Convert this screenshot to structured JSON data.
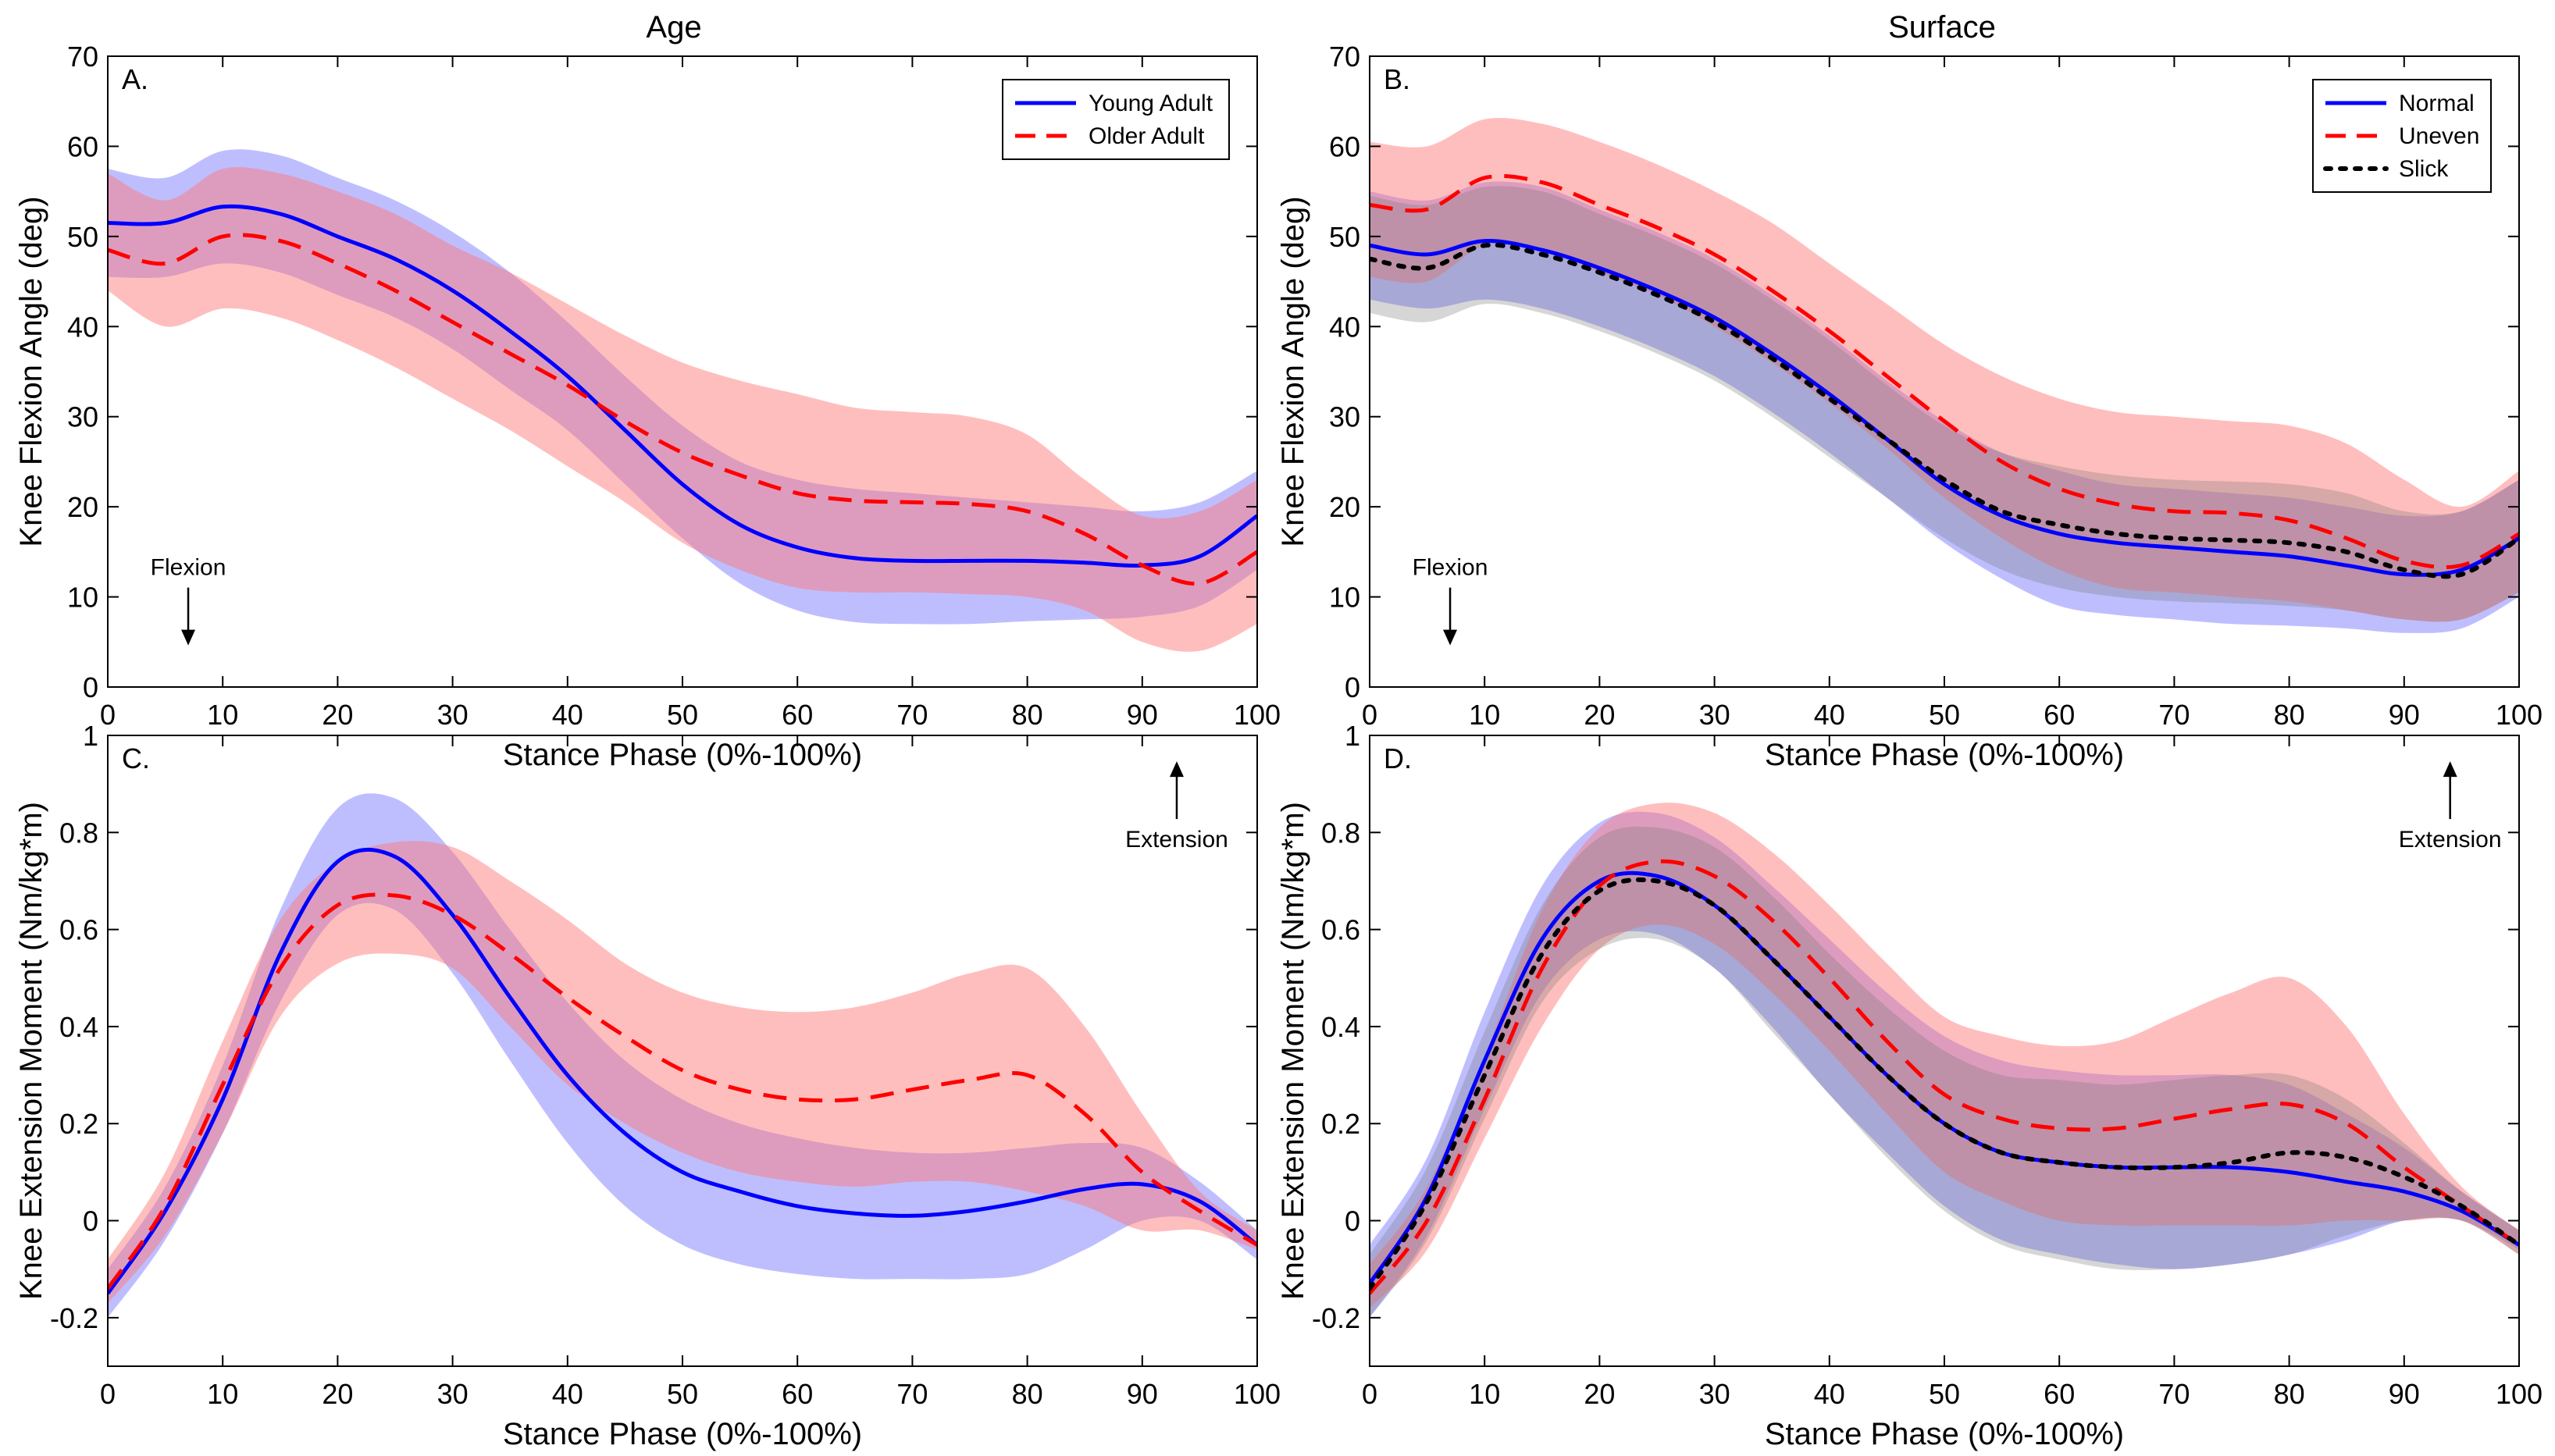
{
  "figure": {
    "column_titles": [
      "Age",
      "Surface"
    ],
    "x_axis_label": "Stance Phase (0%-100%)",
    "y_axis_label_top": "Knee Flexion Angle (deg)",
    "y_axis_label_bottom": "Knee Extension Moment (Nm/kg*m)",
    "annotation_flexion": "Flexion",
    "annotation_extension": "Extension"
  },
  "chart_data": [
    {
      "id": "A",
      "type": "line",
      "panel_label": "A.",
      "title": "Age",
      "xlabel": "Stance Phase (0%-100%)",
      "ylabel": "Knee Flexion Angle (deg)",
      "xlim": [
        0,
        100
      ],
      "ylim": [
        0,
        70
      ],
      "xticks": [
        0,
        10,
        20,
        30,
        40,
        50,
        60,
        70,
        80,
        90,
        100
      ],
      "yticks": [
        0,
        10,
        20,
        30,
        40,
        50,
        60,
        70
      ],
      "legend_position": "top-right",
      "annotation": {
        "text": "Flexion",
        "x": 7,
        "y": 10,
        "arrow": "down"
      },
      "x": [
        0,
        5,
        10,
        15,
        20,
        25,
        30,
        35,
        40,
        45,
        50,
        55,
        60,
        65,
        70,
        75,
        80,
        85,
        90,
        95,
        100
      ],
      "series": [
        {
          "name": "Young Adult",
          "color": "#0000ff",
          "dash": "solid",
          "values": [
            51.5,
            51.5,
            53.3,
            52.5,
            50,
            47.5,
            44,
            39.5,
            34.5,
            28.5,
            22.5,
            18,
            15.5,
            14.3,
            14,
            14,
            14,
            13.8,
            13.5,
            14.5,
            19
          ],
          "upper": [
            57.5,
            56.5,
            59.5,
            59,
            56.5,
            54,
            50.5,
            46,
            40.5,
            34.5,
            29,
            25,
            23,
            22,
            21.5,
            21,
            20.5,
            20,
            19.5,
            20.5,
            24
          ],
          "lower": [
            45.5,
            45.5,
            47,
            46,
            43.5,
            41,
            37.5,
            33,
            28.5,
            22.5,
            16.5,
            11.5,
            8.5,
            7.2,
            7,
            7,
            7.3,
            7.5,
            7.8,
            9,
            13
          ]
        },
        {
          "name": "Older Adult",
          "color": "#ff0000",
          "dash": "dashed",
          "values": [
            48.5,
            47,
            50,
            49.5,
            47,
            44,
            40.5,
            37,
            33.5,
            29.5,
            26,
            23.5,
            21.5,
            20.7,
            20.5,
            20.3,
            19.5,
            17,
            13.5,
            11.5,
            15
          ],
          "upper": [
            57,
            54,
            57.5,
            57,
            55,
            52.5,
            49,
            46,
            42.5,
            39,
            36,
            34,
            32.5,
            31,
            30.5,
            30,
            28,
            23,
            19,
            19.5,
            23
          ],
          "lower": [
            44,
            40,
            42,
            41,
            38.5,
            35.5,
            32,
            28.5,
            24.5,
            20.5,
            16,
            13,
            11,
            10.5,
            10.5,
            10.3,
            10,
            8.5,
            5,
            4,
            7
          ]
        }
      ]
    },
    {
      "id": "B",
      "type": "line",
      "panel_label": "B.",
      "title": "Surface",
      "xlabel": "Stance Phase (0%-100%)",
      "ylabel": "Knee Flexion Angle (deg)",
      "xlim": [
        0,
        100
      ],
      "ylim": [
        0,
        70
      ],
      "xticks": [
        0,
        10,
        20,
        30,
        40,
        50,
        60,
        70,
        80,
        90,
        100
      ],
      "yticks": [
        0,
        10,
        20,
        30,
        40,
        50,
        60,
        70
      ],
      "legend_position": "top-right",
      "annotation": {
        "text": "Flexion",
        "x": 7,
        "y": 10,
        "arrow": "down"
      },
      "x": [
        0,
        5,
        10,
        15,
        20,
        25,
        30,
        35,
        40,
        45,
        50,
        55,
        60,
        65,
        70,
        75,
        80,
        85,
        90,
        95,
        100
      ],
      "series": [
        {
          "name": "Normal",
          "color": "#0000ff",
          "dash": "solid",
          "values": [
            49,
            48,
            49.5,
            48.5,
            46.5,
            44,
            41,
            37,
            32.5,
            27.5,
            22.5,
            19,
            17,
            16,
            15.5,
            15,
            14.5,
            13.5,
            12.5,
            13,
            16.5
          ],
          "upper": [
            55,
            54,
            56,
            55.5,
            53,
            50.5,
            47.5,
            43.5,
            39,
            34,
            29.5,
            26,
            24,
            22.5,
            22,
            21.5,
            21,
            20,
            19,
            19.5,
            23
          ],
          "lower": [
            43,
            42,
            43,
            42,
            40,
            37.5,
            34.5,
            30.5,
            26,
            21,
            16,
            12,
            9,
            8,
            7.5,
            7,
            6.8,
            6.5,
            6,
            6.5,
            10
          ]
        },
        {
          "name": "Uneven",
          "color": "#ff0000",
          "dash": "dashed",
          "values": [
            53.5,
            53,
            56.5,
            56,
            53.5,
            51,
            48,
            44,
            39.5,
            34.5,
            29.5,
            25,
            22,
            20.3,
            19.5,
            19.3,
            18.5,
            16.5,
            14,
            13.5,
            17
          ],
          "upper": [
            60.5,
            60,
            63,
            62.5,
            60.5,
            58,
            55,
            51.5,
            47,
            42.5,
            38,
            34.5,
            32,
            30.5,
            30,
            29.5,
            29,
            27,
            23,
            20,
            24
          ],
          "lower": [
            45.5,
            45,
            49,
            48.5,
            46,
            43.5,
            40,
            36,
            31.5,
            26.5,
            21,
            16.5,
            13,
            11,
            10.5,
            10,
            9.5,
            8.5,
            7.5,
            7.5,
            10.5
          ]
        },
        {
          "name": "Slick",
          "color": "#000000",
          "dash": "dotted",
          "values": [
            47.5,
            46.5,
            49,
            48,
            46,
            43.5,
            40.5,
            36.5,
            32,
            27.5,
            23,
            19.5,
            18,
            17,
            16.5,
            16.3,
            16,
            15,
            13,
            12.5,
            16.5
          ],
          "upper": [
            54.5,
            53.5,
            55.5,
            55,
            52.5,
            50,
            47,
            43,
            38.5,
            33.5,
            29,
            26,
            24.5,
            23.5,
            23,
            22.8,
            22.5,
            21.5,
            19.5,
            19.5,
            23
          ],
          "lower": [
            41.5,
            40.5,
            42.5,
            41.5,
            39.5,
            37,
            34,
            30,
            25.5,
            21,
            16.5,
            13,
            11,
            10,
            9.5,
            9.3,
            9,
            8.5,
            7.5,
            7.5,
            10.5
          ]
        }
      ]
    },
    {
      "id": "C",
      "type": "line",
      "panel_label": "C.",
      "title": "",
      "xlabel": "Stance Phase (0%-100%)",
      "ylabel": "Knee Extension Moment (Nm/kg*m)",
      "xlim": [
        0,
        100
      ],
      "ylim": [
        -0.3,
        1
      ],
      "xticks": [
        0,
        10,
        20,
        30,
        40,
        50,
        60,
        70,
        80,
        90,
        100
      ],
      "yticks": [
        -0.2,
        0,
        0.2,
        0.4,
        0.6,
        0.8,
        1
      ],
      "annotation": {
        "text": "Extension",
        "x": 93,
        "y": 0.95,
        "arrow": "up"
      },
      "x": [
        0,
        5,
        10,
        15,
        20,
        25,
        30,
        35,
        40,
        45,
        50,
        55,
        60,
        65,
        70,
        75,
        80,
        85,
        90,
        95,
        100
      ],
      "series": [
        {
          "name": "Young Adult",
          "color": "#0000ff",
          "dash": "solid",
          "values": [
            -0.15,
            0.02,
            0.25,
            0.55,
            0.74,
            0.75,
            0.63,
            0.46,
            0.3,
            0.18,
            0.1,
            0.06,
            0.03,
            0.015,
            0.01,
            0.02,
            0.04,
            0.065,
            0.075,
            0.04,
            -0.05
          ],
          "upper": [
            -0.1,
            0.07,
            0.32,
            0.64,
            0.85,
            0.87,
            0.76,
            0.6,
            0.45,
            0.33,
            0.25,
            0.2,
            0.17,
            0.15,
            0.14,
            0.14,
            0.15,
            0.16,
            0.15,
            0.08,
            -0.02
          ],
          "lower": [
            -0.2,
            -0.04,
            0.18,
            0.45,
            0.63,
            0.64,
            0.51,
            0.33,
            0.16,
            0.03,
            -0.05,
            -0.09,
            -0.11,
            -0.12,
            -0.12,
            -0.12,
            -0.11,
            -0.06,
            0,
            0,
            -0.08
          ]
        },
        {
          "name": "Older Adult",
          "color": "#ff0000",
          "dash": "dashed",
          "values": [
            -0.14,
            0.03,
            0.28,
            0.52,
            0.65,
            0.67,
            0.63,
            0.55,
            0.46,
            0.38,
            0.31,
            0.27,
            0.25,
            0.25,
            0.27,
            0.29,
            0.3,
            0.22,
            0.1,
            0.02,
            -0.05
          ],
          "upper": [
            -0.08,
            0.1,
            0.37,
            0.62,
            0.74,
            0.78,
            0.77,
            0.7,
            0.62,
            0.53,
            0.47,
            0.44,
            0.43,
            0.44,
            0.47,
            0.51,
            0.52,
            0.4,
            0.22,
            0.06,
            -0.02
          ],
          "lower": [
            -0.17,
            -0.03,
            0.18,
            0.42,
            0.53,
            0.55,
            0.52,
            0.4,
            0.28,
            0.2,
            0.14,
            0.1,
            0.08,
            0.07,
            0.08,
            0.08,
            0.06,
            0.03,
            -0.02,
            -0.02,
            -0.06
          ]
        }
      ]
    },
    {
      "id": "D",
      "type": "line",
      "panel_label": "D.",
      "title": "",
      "xlabel": "Stance Phase (0%-100%)",
      "ylabel": "Knee Extension Moment (Nm/kg*m)",
      "xlim": [
        0,
        100
      ],
      "ylim": [
        -0.3,
        1
      ],
      "xticks": [
        0,
        10,
        20,
        30,
        40,
        50,
        60,
        70,
        80,
        90,
        100
      ],
      "yticks": [
        -0.2,
        0,
        0.2,
        0.4,
        0.6,
        0.8,
        1
      ],
      "annotation": {
        "text": "Extension",
        "x": 94,
        "y": 0.95,
        "arrow": "up"
      },
      "x": [
        0,
        5,
        10,
        15,
        20,
        25,
        30,
        35,
        40,
        45,
        50,
        55,
        60,
        65,
        70,
        75,
        80,
        85,
        90,
        95,
        100
      ],
      "series": [
        {
          "name": "Normal",
          "color": "#0000ff",
          "dash": "solid",
          "values": [
            -0.13,
            0.05,
            0.33,
            0.58,
            0.7,
            0.71,
            0.65,
            0.54,
            0.42,
            0.3,
            0.2,
            0.14,
            0.12,
            0.11,
            0.11,
            0.11,
            0.1,
            0.08,
            0.06,
            0.02,
            -0.05
          ],
          "upper": [
            -0.05,
            0.13,
            0.43,
            0.69,
            0.82,
            0.84,
            0.79,
            0.69,
            0.58,
            0.47,
            0.38,
            0.33,
            0.31,
            0.3,
            0.3,
            0.3,
            0.28,
            0.22,
            0.15,
            0.06,
            -0.02
          ],
          "lower": [
            -0.2,
            -0.03,
            0.23,
            0.47,
            0.58,
            0.59,
            0.52,
            0.4,
            0.26,
            0.14,
            0.03,
            -0.04,
            -0.07,
            -0.09,
            -0.1,
            -0.09,
            -0.07,
            -0.04,
            0,
            0,
            -0.06
          ]
        },
        {
          "name": "Uneven",
          "color": "#ff0000",
          "dash": "dashed",
          "values": [
            -0.15,
            0,
            0.25,
            0.52,
            0.69,
            0.74,
            0.71,
            0.62,
            0.5,
            0.37,
            0.26,
            0.21,
            0.19,
            0.19,
            0.21,
            0.23,
            0.24,
            0.2,
            0.11,
            0.03,
            -0.05
          ],
          "upper": [
            -0.09,
            0.07,
            0.34,
            0.64,
            0.81,
            0.86,
            0.84,
            0.76,
            0.65,
            0.53,
            0.42,
            0.38,
            0.36,
            0.37,
            0.42,
            0.47,
            0.5,
            0.4,
            0.22,
            0.07,
            -0.02
          ],
          "lower": [
            -0.18,
            -0.06,
            0.17,
            0.4,
            0.56,
            0.61,
            0.57,
            0.47,
            0.35,
            0.22,
            0.1,
            0.04,
            0,
            -0.01,
            -0.01,
            -0.01,
            -0.01,
            0,
            0,
            0,
            -0.07
          ]
        },
        {
          "name": "Slick",
          "color": "#000000",
          "dash": "dotted",
          "values": [
            -0.14,
            0.04,
            0.3,
            0.55,
            0.68,
            0.7,
            0.65,
            0.54,
            0.42,
            0.3,
            0.2,
            0.14,
            0.12,
            0.11,
            0.11,
            0.12,
            0.14,
            0.13,
            0.09,
            0.03,
            -0.05
          ],
          "upper": [
            -0.07,
            0.11,
            0.39,
            0.65,
            0.79,
            0.81,
            0.77,
            0.67,
            0.55,
            0.44,
            0.35,
            0.3,
            0.29,
            0.28,
            0.29,
            0.3,
            0.3,
            0.25,
            0.16,
            0.06,
            -0.02
          ],
          "lower": [
            -0.2,
            -0.04,
            0.21,
            0.45,
            0.56,
            0.58,
            0.52,
            0.39,
            0.26,
            0.13,
            0.02,
            -0.05,
            -0.08,
            -0.1,
            -0.1,
            -0.09,
            -0.07,
            -0.03,
            0,
            0,
            -0.07
          ]
        }
      ]
    }
  ]
}
